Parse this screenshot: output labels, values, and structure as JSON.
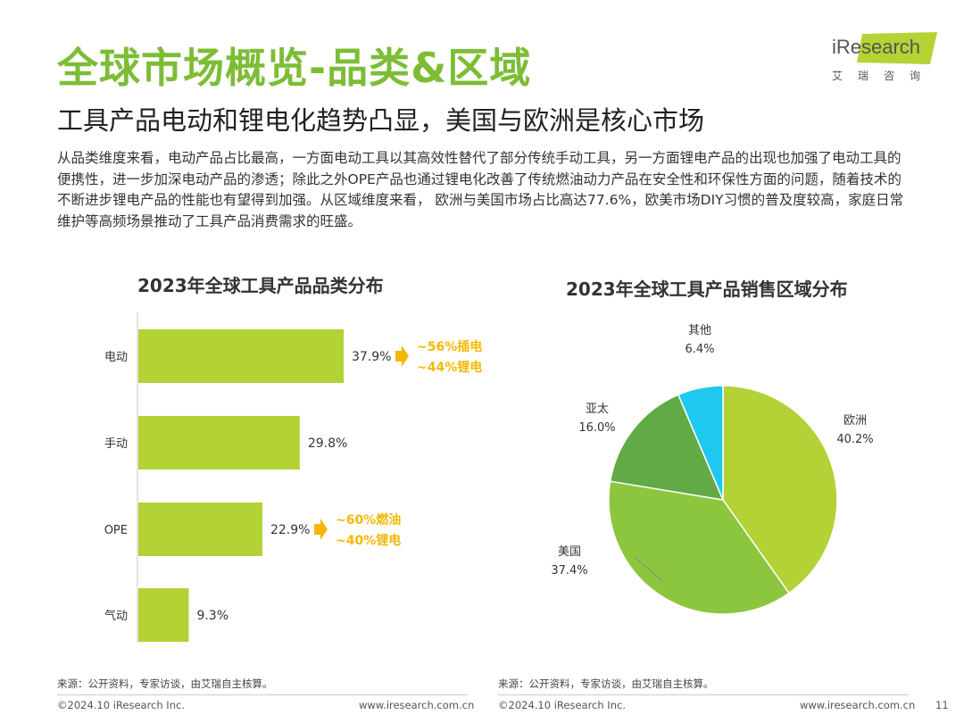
{
  "header": {
    "title": "全球市场概览-品类&区域",
    "subtitle": "工具产品电动和锂电化趋势凸显，美国与欧洲是核心市场",
    "body": "从品类维度来看，电动产品占比最高，一方面电动工具以其高效性替代了部分传统手动工具，另一方面锂电产品的出现也加强了电动工具的便携性，进一步加深电动产品的渗透；除此之外OPE产品也通过锂电化改善了传统燃油动力产品在安全性和环保性方面的问题，随着技术的不断进步锂电产品的性能也有望得到加强。从区域维度来看， 欧洲与美国市场占比高达77.6%，欧美市场DIY习惯的普及度较高，家庭日常维护等高频场景推动了工具产品消费需求的旺盛。"
  },
  "logo": {
    "text": "iResearch",
    "sub": "艾瑞咨询"
  },
  "colors": {
    "accent": "#7dbd36",
    "bar": "#b2d235",
    "annotation": "#f5b800"
  },
  "chart_data": [
    {
      "type": "bar",
      "orientation": "horizontal",
      "title": "2023年全球工具产品品类分布",
      "categories": [
        "电动",
        "手动",
        "OPE",
        "气动"
      ],
      "values": [
        37.9,
        29.8,
        22.9,
        9.3
      ],
      "value_labels": [
        "37.9%",
        "29.8%",
        "22.9%",
        "9.3%"
      ],
      "annotations": [
        {
          "category": "电动",
          "lines": [
            "~56%插电",
            "~44%锂电"
          ]
        },
        {
          "category": "OPE",
          "lines": [
            "~60%燃油",
            "~40%锂电"
          ]
        }
      ]
    },
    {
      "type": "pie",
      "title": "2023年全球工具产品销售区域分布",
      "slices": [
        {
          "label": "欧洲",
          "value": 40.2,
          "value_label": "40.2%",
          "color": "#b2d235"
        },
        {
          "label": "美国",
          "value": 37.4,
          "value_label": "37.4%",
          "color": "#8cc63f"
        },
        {
          "label": "亚太",
          "value": 16.0,
          "value_label": "16.0%",
          "color": "#62aa45"
        },
        {
          "label": "其他",
          "value": 6.4,
          "value_label": "6.4%",
          "color": "#1fc8ef"
        }
      ]
    }
  ],
  "footer": {
    "source_left": "来源：公开资料，专家访谈，由艾瑞自主核算。",
    "source_right": "来源：公开资料，专家访谈，由艾瑞自主核算。",
    "copyright_left": "©2024.10 iResearch Inc.",
    "url_left": "www.iresearch.com.cn",
    "copyright_right": "©2024.10 iResearch Inc.",
    "url_right": "www.iresearch.com.cn",
    "page_number": "11"
  }
}
